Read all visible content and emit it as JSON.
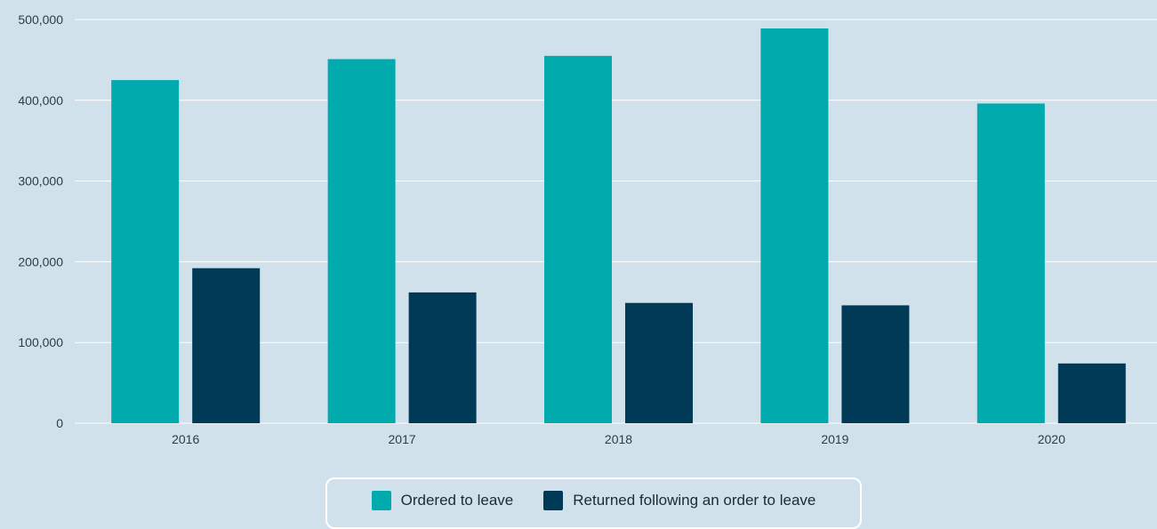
{
  "chart_data": {
    "type": "bar",
    "categories": [
      "2016",
      "2017",
      "2018",
      "2019",
      "2020"
    ],
    "series": [
      {
        "name": "Ordered to leave",
        "color": "#00aaad",
        "values": [
          425000,
          451000,
          455000,
          489000,
          396000
        ]
      },
      {
        "name": "Returned following an order to leave",
        "color": "#003a57",
        "values": [
          192000,
          162000,
          149000,
          146000,
          74000
        ]
      }
    ],
    "ylim": [
      0,
      500000
    ],
    "yticks": [
      "0",
      "100,000",
      "200,000",
      "300,000",
      "400,000",
      "500,000"
    ],
    "ytick_values": [
      0,
      100000,
      200000,
      300000,
      400000,
      500000
    ],
    "grid": true,
    "legend_position": "bottom-center"
  }
}
